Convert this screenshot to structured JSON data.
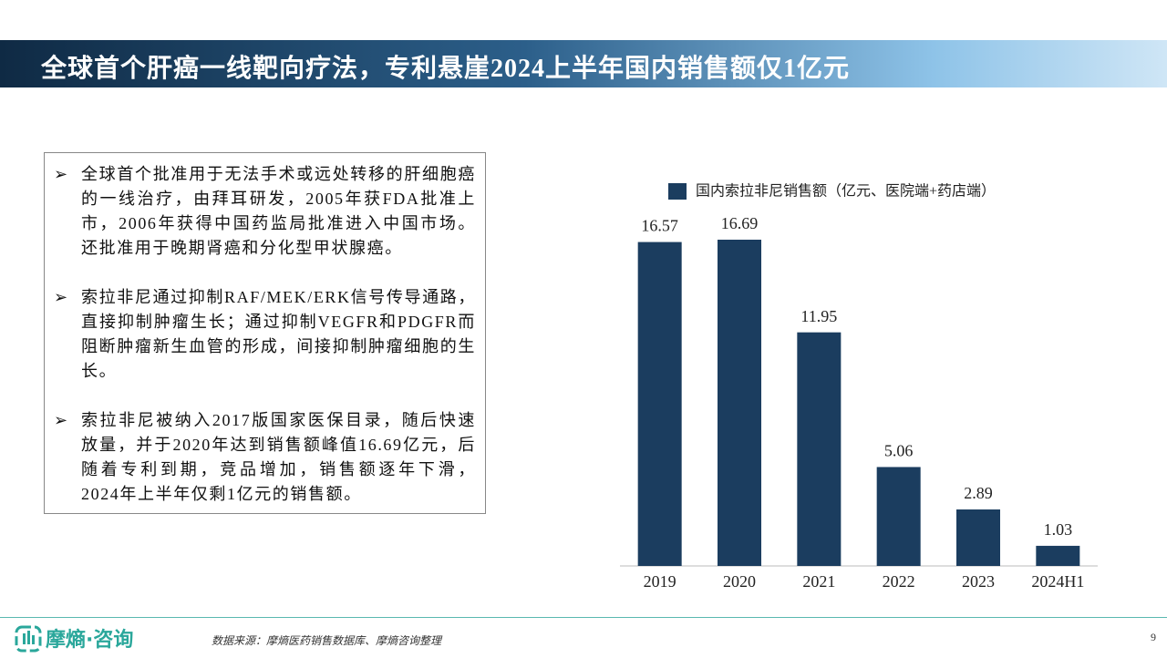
{
  "header": {
    "title": "全球首个肝癌一线靶向疗法，专利悬崖2024上半年国内销售额仅1亿元"
  },
  "bullets": [
    "全球首个批准用于无法手术或远处转移的肝细胞癌的一线治疗，由拜耳研发，2005年获FDA批准上市，2006年获得中国药监局批准进入中国市场。还批准用于晚期肾癌和分化型甲状腺癌。",
    "索拉非尼通过抑制RAF/MEK/ERK信号传导通路，直接抑制肿瘤生长；通过抑制VEGFR和PDGFR而阻断肿瘤新生血管的形成，间接抑制肿瘤细胞的生长。",
    "索拉非尼被纳入2017版国家医保目录，随后快速放量，并于2020年达到销售额峰值16.69亿元，后随着专利到期，竞品增加，销售额逐年下滑，2024年上半年仅剩1亿元的销售额。"
  ],
  "chart_data": {
    "type": "bar",
    "categories": [
      "2019",
      "2020",
      "2021",
      "2022",
      "2023",
      "2024H1"
    ],
    "series": [
      {
        "name": "国内索拉非尼销售额（亿元、医院端+药店端）",
        "color": "#1b3d5f",
        "values": [
          16.57,
          16.69,
          11.95,
          5.06,
          2.89,
          1.03
        ]
      }
    ]
  },
  "footer": {
    "brand": "摩熵·咨询",
    "source": "数据来源：摩熵医药销售数据库、摩熵咨询整理",
    "page": 9
  }
}
